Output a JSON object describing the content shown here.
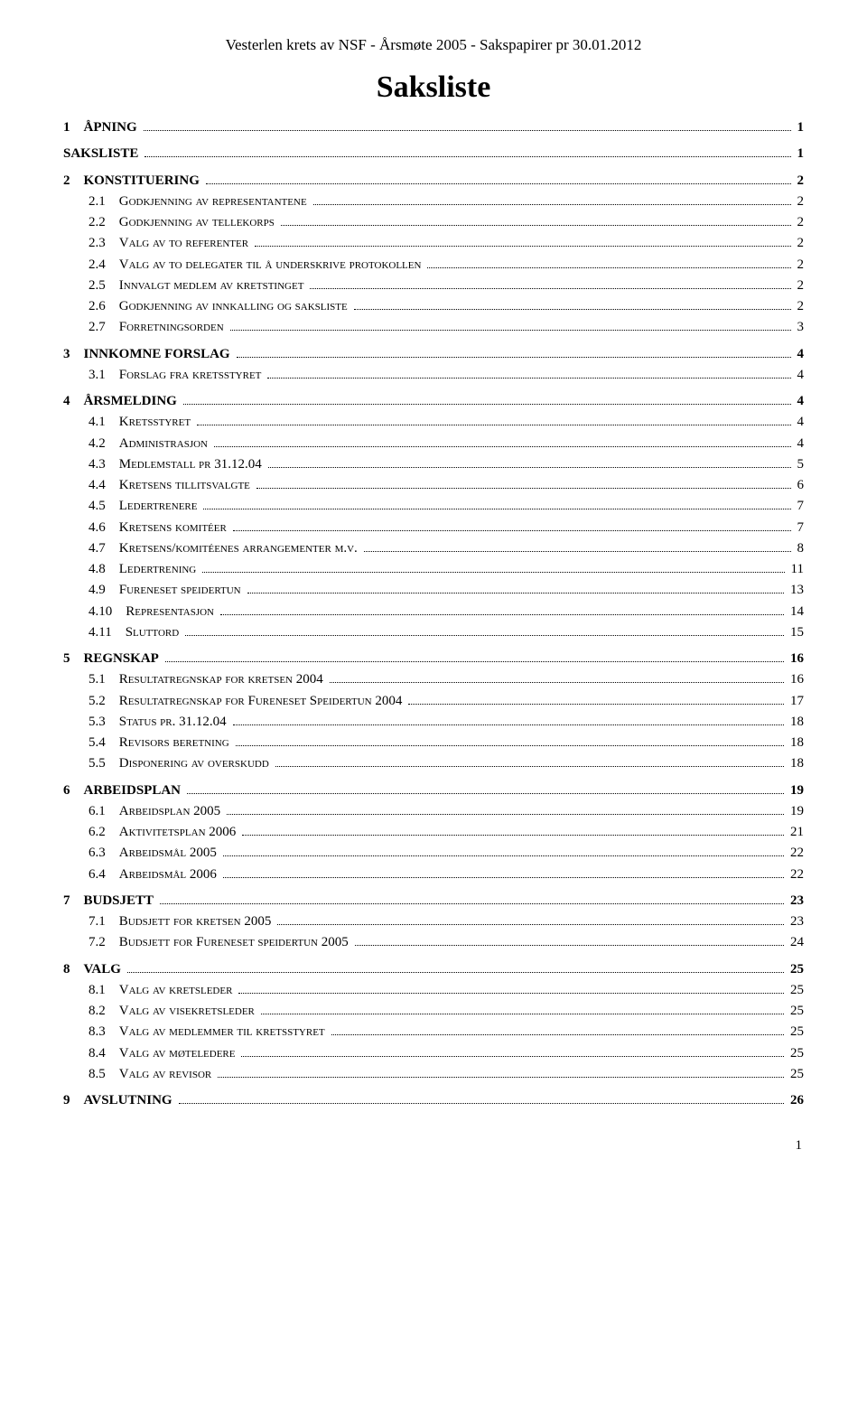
{
  "header": "Vesterlen krets av NSF - Årsmøte 2005 - Sakspapirer  pr 30.01.2012",
  "title": "Saksliste",
  "page_number": "1",
  "toc": [
    {
      "level": 1,
      "num": "1",
      "text": "ÅPNING",
      "page": "1"
    },
    {
      "level": 1,
      "num": "",
      "text": "SAKSLISTE",
      "page": "1"
    },
    {
      "level": 1,
      "num": "2",
      "text": "KONSTITUERING",
      "page": "2"
    },
    {
      "level": 2,
      "num": "2.1",
      "text": "Godkjenning av representantene",
      "page": "2"
    },
    {
      "level": 2,
      "num": "2.2",
      "text": "Godkjenning av tellekorps",
      "page": "2"
    },
    {
      "level": 2,
      "num": "2.3",
      "text": "Valg av to referenter",
      "page": "2"
    },
    {
      "level": 2,
      "num": "2.4",
      "text": "Valg av to delegater til å underskrive protokollen",
      "page": "2"
    },
    {
      "level": 2,
      "num": "2.5",
      "text": "Innvalgt medlem av kretstinget",
      "page": "2"
    },
    {
      "level": 2,
      "num": "2.6",
      "text": "Godkjenning av innkalling og saksliste",
      "page": "2"
    },
    {
      "level": 2,
      "num": "2.7",
      "text": "Forretningsorden",
      "page": "3"
    },
    {
      "level": 1,
      "num": "3",
      "text": "INNKOMNE FORSLAG",
      "page": "4"
    },
    {
      "level": 2,
      "num": "3.1",
      "text": "Forslag fra kretsstyret",
      "page": "4"
    },
    {
      "level": 1,
      "num": "4",
      "text": "ÅRSMELDING",
      "page": "4"
    },
    {
      "level": 2,
      "num": "4.1",
      "text": "Kretsstyret",
      "page": "4"
    },
    {
      "level": 2,
      "num": "4.2",
      "text": "Administrasjon",
      "page": "4"
    },
    {
      "level": 2,
      "num": "4.3",
      "text": "Medlemstall pr 31.12.04",
      "page": "5"
    },
    {
      "level": 2,
      "num": "4.4",
      "text": "Kretsens tillitsvalgte",
      "page": "6"
    },
    {
      "level": 2,
      "num": "4.5",
      "text": "Ledertrenere",
      "page": "7"
    },
    {
      "level": 2,
      "num": "4.6",
      "text": "Kretsens komitéer",
      "page": "7"
    },
    {
      "level": 2,
      "num": "4.7",
      "text": "Kretsens/komitéenes arrangementer m.v.",
      "page": "8"
    },
    {
      "level": 2,
      "num": "4.8",
      "text": "Ledertrening",
      "page": "11"
    },
    {
      "level": 2,
      "num": "4.9",
      "text": "Fureneset speidertun",
      "page": "13"
    },
    {
      "level": 2,
      "num": "4.10",
      "text": "Representasjon",
      "page": "14"
    },
    {
      "level": 2,
      "num": "4.11",
      "text": "Sluttord",
      "page": "15"
    },
    {
      "level": 1,
      "num": "5",
      "text": "REGNSKAP",
      "page": "16"
    },
    {
      "level": 2,
      "num": "5.1",
      "text": "Resultatregnskap for kretsen 2004",
      "page": "16"
    },
    {
      "level": 2,
      "num": "5.2",
      "text": "Resultatregnskap for Fureneset Speidertun 2004",
      "page": "17"
    },
    {
      "level": 2,
      "num": "5.3",
      "text": "Status pr. 31.12.04",
      "page": "18"
    },
    {
      "level": 2,
      "num": "5.4",
      "text": "Revisors beretning",
      "page": "18"
    },
    {
      "level": 2,
      "num": "5.5",
      "text": "Disponering av overskudd",
      "page": "18"
    },
    {
      "level": 1,
      "num": "6",
      "text": "ARBEIDSPLAN",
      "page": "19"
    },
    {
      "level": 2,
      "num": "6.1",
      "text": "Arbeidsplan 2005",
      "page": "19"
    },
    {
      "level": 2,
      "num": "6.2",
      "text": "Aktivitetsplan 2006",
      "page": "21"
    },
    {
      "level": 2,
      "num": "6.3",
      "text": "Arbeidsmål 2005",
      "page": "22"
    },
    {
      "level": 2,
      "num": "6.4",
      "text": "Arbeidsmål 2006",
      "page": "22"
    },
    {
      "level": 1,
      "num": "7",
      "text": "BUDSJETT",
      "page": "23"
    },
    {
      "level": 2,
      "num": "7.1",
      "text": "Budsjett for kretsen 2005",
      "page": "23"
    },
    {
      "level": 2,
      "num": "7.2",
      "text": "Budsjett for Fureneset speidertun 2005",
      "page": "24"
    },
    {
      "level": 1,
      "num": "8",
      "text": "VALG",
      "page": "25"
    },
    {
      "level": 2,
      "num": "8.1",
      "text": "Valg av kretsleder",
      "page": "25"
    },
    {
      "level": 2,
      "num": "8.2",
      "text": "Valg av visekretsleder",
      "page": "25"
    },
    {
      "level": 2,
      "num": "8.3",
      "text": "Valg av medlemmer til kretsstyret",
      "page": "25"
    },
    {
      "level": 2,
      "num": "8.4",
      "text": "Valg av møteledere",
      "page": "25"
    },
    {
      "level": 2,
      "num": "8.5",
      "text": "Valg av revisor",
      "page": "25"
    },
    {
      "level": 1,
      "num": "9",
      "text": "AVSLUTNING",
      "page": "26"
    }
  ]
}
